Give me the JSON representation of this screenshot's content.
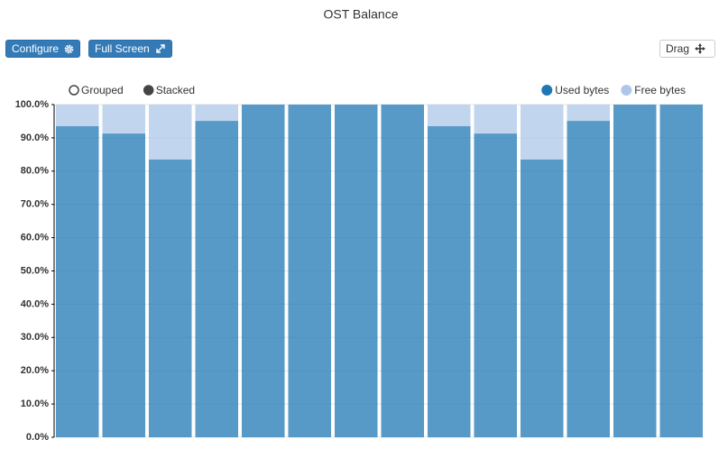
{
  "toolbar": {
    "buttons": [
      "Configure",
      "Full Screen"
    ],
    "drag": "Drag"
  },
  "chart_data": {
    "type": "bar",
    "stacked": true,
    "title": "OST Balance",
    "modes": [
      "Grouped",
      "Stacked"
    ],
    "selected_mode": 1,
    "series": [
      {
        "name": "Used bytes",
        "color": "#1f77b4",
        "values": [
          93.5,
          91.3,
          83.5,
          95.1,
          100,
          100,
          100,
          100,
          93.5,
          91.3,
          83.5,
          95.1,
          100,
          100
        ]
      },
      {
        "name": "Free bytes",
        "color": "#aec7e8",
        "values": [
          6.5,
          8.7,
          16.5,
          4.9,
          0,
          0,
          0,
          0,
          6.5,
          8.7,
          16.5,
          4.9,
          0,
          0
        ]
      }
    ],
    "ylim": [
      0,
      100
    ],
    "yticks": [
      {
        "value": 0,
        "label": "0.0%"
      },
      {
        "value": 10,
        "label": "10.0%"
      },
      {
        "value": 20,
        "label": "20.0%"
      },
      {
        "value": 30,
        "label": "30.0%"
      },
      {
        "value": 40,
        "label": "40.0%"
      },
      {
        "value": 50,
        "label": "50.0%"
      },
      {
        "value": 60,
        "label": "60.0%"
      },
      {
        "value": 70,
        "label": "70.0%"
      },
      {
        "value": 80,
        "label": "80.0%"
      },
      {
        "value": 90,
        "label": "90.0%"
      },
      {
        "value": 100,
        "label": "100.0%"
      }
    ],
    "grid": true
  }
}
